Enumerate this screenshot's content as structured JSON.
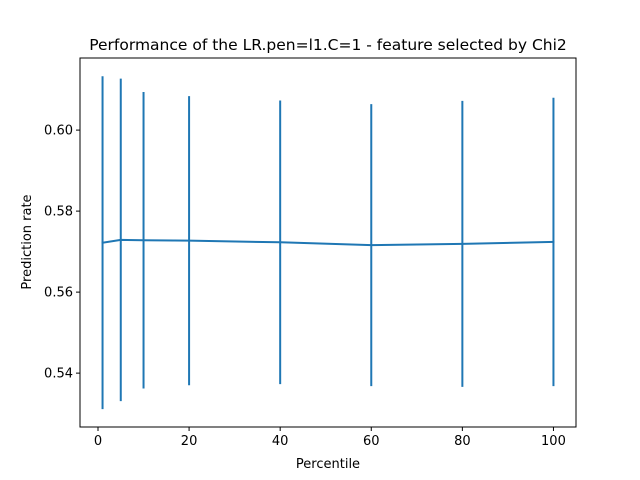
{
  "chart_data": {
    "type": "line",
    "title": "Performance of the LR.pen=l1.C=1 - feature selected by Chi2",
    "xlabel": "Percentile",
    "ylabel": "Prediction rate",
    "xlim": [
      -3.95,
      104.95
    ],
    "ylim": [
      0.5267,
      0.6178
    ],
    "x_ticks": [
      0,
      20,
      40,
      60,
      80,
      100
    ],
    "y_ticks": [
      0.54,
      0.56,
      0.58,
      0.6
    ],
    "x_tick_labels": [
      "0",
      "20",
      "40",
      "60",
      "80",
      "100"
    ],
    "y_tick_labels": [
      "0.54",
      "0.56",
      "0.58",
      "0.60"
    ],
    "grid": false,
    "series": [
      {
        "color": "#1f77b4",
        "x": [
          1,
          5,
          10,
          20,
          40,
          60,
          80,
          100
        ],
        "y": [
          0.5722,
          0.5729,
          0.5728,
          0.5727,
          0.5723,
          0.5716,
          0.5719,
          0.5724
        ],
        "yerr": [
          0.0411,
          0.0398,
          0.0366,
          0.0357,
          0.035,
          0.0348,
          0.0353,
          0.0356
        ]
      }
    ]
  }
}
